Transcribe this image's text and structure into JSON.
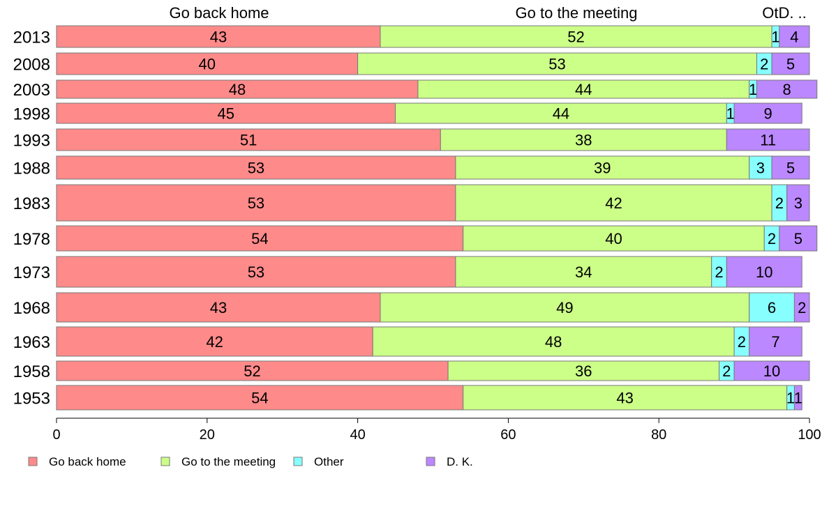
{
  "chart_data": {
    "type": "bar",
    "orientation": "horizontal",
    "stacked": true,
    "categories": [
      "2013",
      "2008",
      "2003",
      "1998",
      "1993",
      "1988",
      "1983",
      "1978",
      "1973",
      "1968",
      "1963",
      "1958",
      "1953"
    ],
    "series": [
      {
        "name": "Go back home",
        "color": "#ff8a8a",
        "values": [
          43,
          40,
          48,
          45,
          51,
          53,
          53,
          54,
          53,
          43,
          42,
          52,
          54
        ]
      },
      {
        "name": "Go to the meeting",
        "color": "#ccff88",
        "values": [
          52,
          53,
          44,
          44,
          38,
          39,
          42,
          40,
          34,
          49,
          48,
          36,
          43
        ]
      },
      {
        "name": "Other",
        "color": "#88ffff",
        "values": [
          1,
          2,
          1,
          1,
          0,
          3,
          2,
          2,
          2,
          6,
          2,
          2,
          1
        ]
      },
      {
        "name": "D. K.",
        "color": "#bb88ff",
        "values": [
          4,
          5,
          8,
          9,
          11,
          5,
          3,
          5,
          10,
          2,
          7,
          10,
          1
        ]
      }
    ],
    "top_labels": [
      "Go back home",
      "Go to the meeting",
      "OtD. .."
    ],
    "x_ticks": [
      0,
      20,
      40,
      60,
      80,
      100
    ],
    "xlim": [
      0,
      100
    ],
    "grid": false,
    "legend_position": "bottom"
  }
}
